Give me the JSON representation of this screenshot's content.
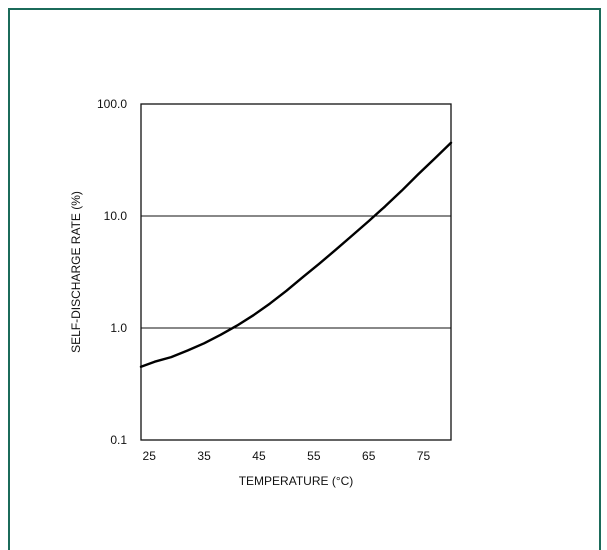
{
  "chart_data": {
    "type": "line",
    "title": "",
    "xlabel": "TEMPERATURE (°C)",
    "ylabel": "SELF-DISCHARGE RATE (%)",
    "x_ticks": [
      25,
      35,
      45,
      55,
      65,
      75
    ],
    "x_tick_labels": [
      "25",
      "35",
      "45",
      "55",
      "65",
      "75"
    ],
    "xlim": [
      23.5,
      80
    ],
    "y_scale": "log",
    "y_ticks": [
      0.1,
      1.0,
      10.0,
      100.0
    ],
    "y_tick_labels": [
      "0.1",
      "1.0",
      "10.0",
      "100.0"
    ],
    "ylim": [
      0.1,
      100
    ],
    "grid": "horizontal at decades",
    "series": [
      {
        "name": "",
        "x": [
          23.5,
          26,
          29,
          32,
          35,
          38,
          41,
          44,
          47,
          50,
          53,
          56,
          59,
          62,
          65,
          68,
          71,
          74,
          77,
          80
        ],
        "y": [
          0.45,
          0.5,
          0.55,
          0.63,
          0.73,
          0.87,
          1.05,
          1.3,
          1.65,
          2.15,
          2.85,
          3.75,
          5.0,
          6.7,
          9.0,
          12.2,
          16.8,
          23.5,
          32.5,
          45.0
        ]
      }
    ]
  },
  "colors": {
    "frame_border": "#1b6b5a",
    "axis": "#111111",
    "line": "#000000"
  }
}
